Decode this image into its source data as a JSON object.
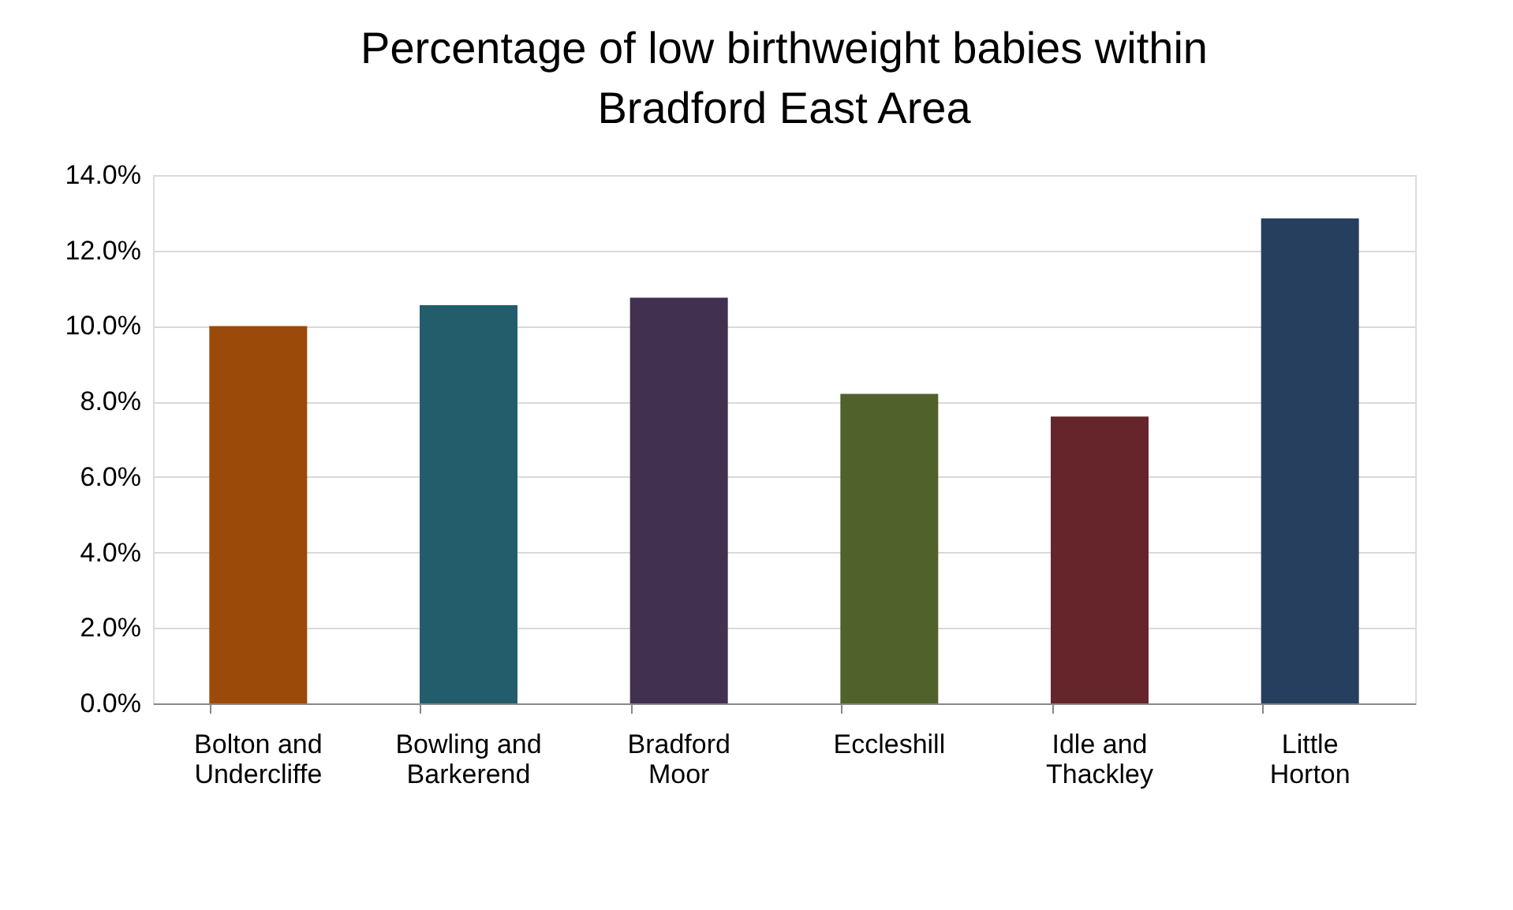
{
  "chart_data": {
    "type": "bar",
    "title": "Percentage of low birthweight babies within Bradford East Area",
    "categories": [
      "Bolton and Undercliffe",
      "Bowling and Barkerend",
      "Bradford Moor",
      "Eccleshill",
      "Idle and Thackley",
      "Little Horton"
    ],
    "values": [
      10.0,
      10.55,
      10.75,
      8.2,
      7.6,
      12.85
    ],
    "colors": [
      "#9c4a09",
      "#235d6c",
      "#41304f",
      "#51612b",
      "#65252a",
      "#263f5e"
    ],
    "ylim": [
      0,
      14
    ],
    "yticks": [
      {
        "value": 0,
        "label": "0.0%"
      },
      {
        "value": 2,
        "label": "2.0%"
      },
      {
        "value": 4,
        "label": "4.0%"
      },
      {
        "value": 6,
        "label": "6.0%"
      },
      {
        "value": 8,
        "label": "8.0%"
      },
      {
        "value": 10,
        "label": "10.0%"
      },
      {
        "value": 12,
        "label": "12.0%"
      },
      {
        "value": 14,
        "label": "14.0%"
      }
    ],
    "grid": "y"
  }
}
